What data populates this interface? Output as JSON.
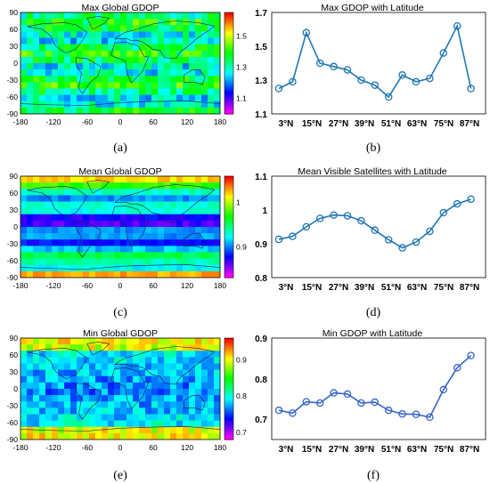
{
  "captions": [
    "(a)",
    "(b)",
    "(c)",
    "(d)",
    "(e)",
    "(f)"
  ],
  "map_axis": {
    "lon_ticks": [
      "-180",
      "-120",
      "-60",
      "0",
      "60",
      "120",
      "180"
    ],
    "lat_ticks": [
      "90",
      "60",
      "30",
      "0",
      "-30",
      "-60",
      "-90"
    ]
  },
  "chart_data": [
    {
      "panel": "a",
      "type": "heatmap",
      "title": "Max Global GDOP",
      "xlim": [
        -180,
        180
      ],
      "ylim": [
        -90,
        90
      ],
      "colorbar": {
        "ticks": [
          "1.5",
          "1.3",
          "1.1"
        ],
        "tick_values": [
          1.5,
          1.3,
          1.1
        ],
        "range": [
          1.0,
          1.65
        ],
        "colormap": "hsv"
      }
    },
    {
      "panel": "b",
      "type": "line",
      "title": "Max GDOP with Latitude",
      "categories": [
        "3°N",
        "9°N",
        "15°N",
        "21°N",
        "27°N",
        "33°N",
        "39°N",
        "45°N",
        "51°N",
        "57°N",
        "63°N",
        "69°N",
        "75°N",
        "81°N",
        "87°N"
      ],
      "xtick_labels": [
        "3°N",
        "15°N",
        "27°N",
        "39°N",
        "51°N",
        "63°N",
        "75°N",
        "87°N"
      ],
      "values": [
        1.25,
        1.29,
        1.58,
        1.4,
        1.38,
        1.36,
        1.3,
        1.27,
        1.2,
        1.33,
        1.29,
        1.31,
        1.46,
        1.62,
        1.25
      ],
      "yticks": [
        "1.7",
        "1.5",
        "1.3",
        "1.1"
      ],
      "ylim": [
        1.1,
        1.7
      ],
      "grid": false,
      "color": "#1f77b4"
    },
    {
      "panel": "c",
      "type": "heatmap",
      "title": "Mean Global GDOP",
      "xlim": [
        -180,
        180
      ],
      "ylim": [
        -90,
        90
      ],
      "colorbar": {
        "ticks": [
          "1",
          "0.9"
        ],
        "tick_values": [
          1.0,
          0.9
        ],
        "range": [
          0.83,
          1.06
        ],
        "colormap": "hsv"
      }
    },
    {
      "panel": "d",
      "type": "line",
      "title": "Mean Visible Satellites with Latitude",
      "categories": [
        "3°N",
        "9°N",
        "15°N",
        "21°N",
        "27°N",
        "33°N",
        "39°N",
        "45°N",
        "51°N",
        "57°N",
        "63°N",
        "69°N",
        "75°N",
        "81°N",
        "87°N"
      ],
      "xtick_labels": [
        "3°N",
        "15°N",
        "27°N",
        "39°N",
        "51°N",
        "63°N",
        "75°N",
        "87°N"
      ],
      "values": [
        0.913,
        0.922,
        0.95,
        0.975,
        0.985,
        0.983,
        0.968,
        0.94,
        0.912,
        0.888,
        0.905,
        0.937,
        0.992,
        1.018,
        1.032
      ],
      "yticks": [
        "1.1",
        "1",
        "0.9",
        "0.8"
      ],
      "ylim": [
        0.8,
        1.1
      ],
      "grid": false,
      "color": "#1f77b4"
    },
    {
      "panel": "e",
      "type": "heatmap",
      "title": "Min Global GDOP",
      "xlim": [
        -180,
        180
      ],
      "ylim": [
        -90,
        90
      ],
      "colorbar": {
        "ticks": [
          "0.9",
          "0.8",
          "0.7"
        ],
        "tick_values": [
          0.9,
          0.8,
          0.7
        ],
        "range": [
          0.68,
          0.96
        ],
        "colormap": "hsv"
      }
    },
    {
      "panel": "f",
      "type": "line",
      "title": "Min GDOP with Latitude",
      "categories": [
        "3°N",
        "9°N",
        "15°N",
        "21°N",
        "27°N",
        "33°N",
        "39°N",
        "45°N",
        "51°N",
        "57°N",
        "63°N",
        "69°N",
        "75°N",
        "81°N",
        "87°N"
      ],
      "xtick_labels": [
        "3°N",
        "15°N",
        "27°N",
        "39°N",
        "51°N",
        "63°N",
        "75°N",
        "87°N"
      ],
      "values": [
        0.722,
        0.715,
        0.743,
        0.74,
        0.765,
        0.762,
        0.74,
        0.742,
        0.722,
        0.713,
        0.712,
        0.705,
        0.773,
        0.827,
        0.857
      ],
      "yticks": [
        "0.9",
        "0.8",
        "0.7"
      ],
      "ylim": [
        0.65,
        0.9
      ],
      "grid": false,
      "color": "#3566c8"
    }
  ]
}
